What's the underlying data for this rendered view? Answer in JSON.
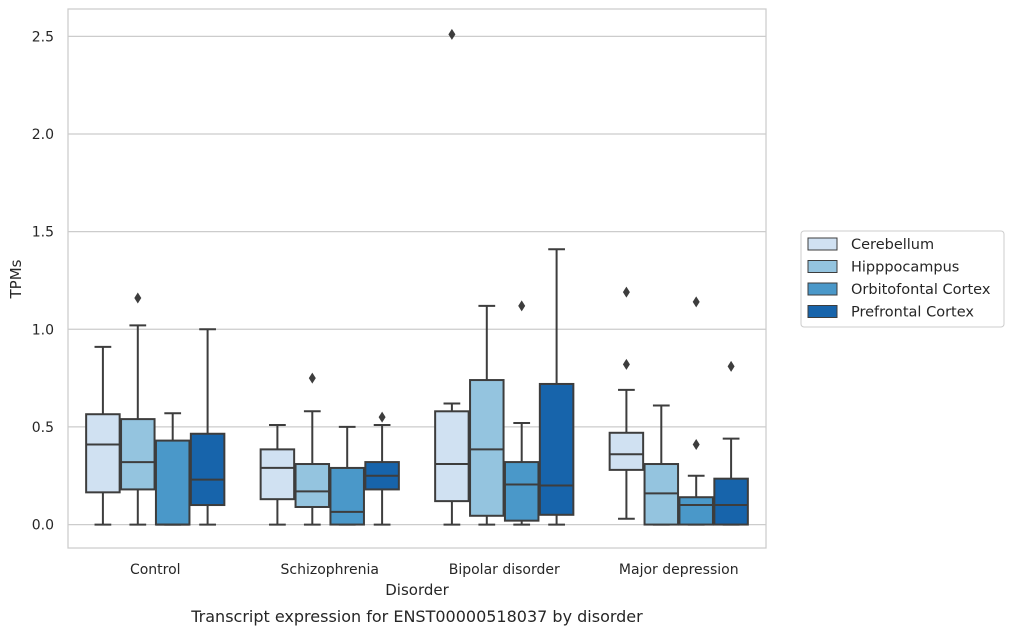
{
  "chart_data": {
    "type": "box",
    "xlabel": "Disorder",
    "ylabel": "TPMs",
    "caption": "Transcript expression for ENST00000518037 by disorder",
    "ylim": [
      -0.12,
      2.64
    ],
    "yticks": [
      "0.0",
      "0.5",
      "1.0",
      "1.5",
      "2.0",
      "2.5"
    ],
    "categories": [
      "Control",
      "Schizophrenia",
      "Bipolar disorder",
      "Major depression"
    ],
    "grid": "horizontal",
    "legend_position": "right",
    "series": [
      {
        "name": "Cerebellum",
        "color": "#d0e1f2",
        "boxes": [
          {
            "whisker_low": 0.0,
            "q1": 0.165,
            "median": 0.41,
            "q3": 0.565,
            "whisker_high": 0.91,
            "outliers": []
          },
          {
            "whisker_low": 0.0,
            "q1": 0.13,
            "median": 0.29,
            "q3": 0.385,
            "whisker_high": 0.51,
            "outliers": []
          },
          {
            "whisker_low": 0.0,
            "q1": 0.12,
            "median": 0.31,
            "q3": 0.58,
            "whisker_high": 0.62,
            "outliers": [
              2.51
            ]
          },
          {
            "whisker_low": 0.03,
            "q1": 0.28,
            "median": 0.36,
            "q3": 0.47,
            "whisker_high": 0.69,
            "outliers": [
              0.82,
              1.19
            ]
          }
        ]
      },
      {
        "name": "Hipppocampus",
        "color": "#94c4df",
        "boxes": [
          {
            "whisker_low": 0.0,
            "q1": 0.18,
            "median": 0.32,
            "q3": 0.54,
            "whisker_high": 1.02,
            "outliers": [
              1.16
            ]
          },
          {
            "whisker_low": 0.0,
            "q1": 0.09,
            "median": 0.17,
            "q3": 0.31,
            "whisker_high": 0.58,
            "outliers": [
              0.75
            ]
          },
          {
            "whisker_low": 0.0,
            "q1": 0.045,
            "median": 0.385,
            "q3": 0.74,
            "whisker_high": 1.12,
            "outliers": []
          },
          {
            "whisker_low": 0.0,
            "q1": 0.0,
            "median": 0.16,
            "q3": 0.31,
            "whisker_high": 0.61,
            "outliers": []
          }
        ]
      },
      {
        "name": "Orbitofontal Cortex",
        "color": "#4a98c9",
        "boxes": [
          {
            "whisker_low": 0.0,
            "q1": 0.0,
            "median": 0.0,
            "q3": 0.43,
            "whisker_high": 0.57,
            "outliers": []
          },
          {
            "whisker_low": 0.0,
            "q1": 0.0,
            "median": 0.065,
            "q3": 0.29,
            "whisker_high": 0.5,
            "outliers": []
          },
          {
            "whisker_low": 0.0,
            "q1": 0.02,
            "median": 0.205,
            "q3": 0.32,
            "whisker_high": 0.52,
            "outliers": [
              1.12
            ]
          },
          {
            "whisker_low": 0.0,
            "q1": 0.0,
            "median": 0.1,
            "q3": 0.14,
            "whisker_high": 0.25,
            "outliers": [
              0.41,
              1.14
            ]
          }
        ]
      },
      {
        "name": "Prefrontal Cortex",
        "color": "#1764ab",
        "boxes": [
          {
            "whisker_low": 0.0,
            "q1": 0.1,
            "median": 0.23,
            "q3": 0.465,
            "whisker_high": 1.0,
            "outliers": []
          },
          {
            "whisker_low": 0.0,
            "q1": 0.18,
            "median": 0.25,
            "q3": 0.32,
            "whisker_high": 0.51,
            "outliers": [
              0.55
            ]
          },
          {
            "whisker_low": 0.0,
            "q1": 0.05,
            "median": 0.2,
            "q3": 0.72,
            "whisker_high": 1.41,
            "outliers": []
          },
          {
            "whisker_low": 0.0,
            "q1": 0.0,
            "median": 0.1,
            "q3": 0.235,
            "whisker_high": 0.44,
            "outliers": [
              0.81
            ]
          }
        ]
      }
    ]
  }
}
